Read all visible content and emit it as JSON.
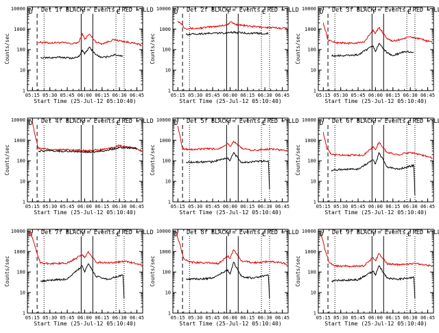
{
  "figure": {
    "colors": {
      "events": "#000000",
      "lld": "#e00000",
      "background": "#ffffff",
      "axes": "#000000"
    }
  },
  "chart_data": [
    {
      "type": "line",
      "title": "Det 1f BLACK = Events, RED = LLD",
      "xlabel": "Start Time (25-Jul-12 05:10:40)",
      "ylabel": "Counts/sec",
      "x_ticks": [
        "05:15",
        "05:30",
        "05:45",
        "06:00",
        "06:15",
        "06:30",
        "06:45"
      ],
      "y_ticks": [
        "1",
        "10",
        "100",
        "1000",
        "10000"
      ],
      "y_scale": "log",
      "ylim": [
        1,
        12000
      ],
      "vlines": [
        {
          "t": "05:19",
          "style": "dashed"
        },
        {
          "t": "05:25",
          "style": "dotted"
        },
        {
          "t": "05:57",
          "style": "solid"
        },
        {
          "t": "06:07",
          "style": "solid"
        },
        {
          "t": "06:27",
          "style": "dotted"
        },
        {
          "t": "06:34",
          "style": "dotted"
        }
      ],
      "flags": [
        "D",
        "F",
        "E"
      ],
      "series": [
        {
          "name": "LLD",
          "color": "#e00000",
          "t": [
            "05:20",
            "05:30",
            "05:40",
            "05:50",
            "05:55",
            "05:58",
            "06:00",
            "06:04",
            "06:10",
            "06:15",
            "06:25",
            "06:35",
            "06:45",
            "06:49"
          ],
          "values": [
            230,
            210,
            220,
            190,
            230,
            600,
            320,
            560,
            230,
            190,
            300,
            240,
            190,
            160
          ]
        },
        {
          "name": "Events",
          "color": "#000000",
          "t": [
            "05:22",
            "05:30",
            "05:40",
            "05:50",
            "05:55",
            "05:58",
            "06:00",
            "06:04",
            "06:10",
            "06:15",
            "06:20",
            "06:25",
            "06:33"
          ],
          "values": [
            40,
            40,
            42,
            38,
            45,
            95,
            60,
            130,
            55,
            40,
            45,
            55,
            50
          ]
        }
      ]
    },
    {
      "type": "line",
      "title": "Det 2f BLACK = Events, RED = LLD",
      "xlabel": "Start Time (25-Jul-12 05:10:40)",
      "ylabel": "Counts/sec",
      "x_ticks": [
        "05:15",
        "05:30",
        "05:45",
        "06:00",
        "06:15",
        "06:30",
        "06:45"
      ],
      "y_ticks": [
        "1",
        "10",
        "100",
        "1000",
        "10000"
      ],
      "y_scale": "log",
      "ylim": [
        1,
        12000
      ],
      "vlines": [
        {
          "t": "05:19",
          "style": "dashed"
        },
        {
          "t": "05:25",
          "style": "dotted"
        },
        {
          "t": "05:57",
          "style": "solid"
        },
        {
          "t": "06:07",
          "style": "solid"
        },
        {
          "t": "06:27",
          "style": "dotted"
        },
        {
          "t": "06:34",
          "style": "dotted"
        }
      ],
      "flags": [
        "D",
        "F",
        "E"
      ],
      "series": [
        {
          "name": "LLD",
          "color": "#e00000",
          "t": [
            "05:15",
            "05:18",
            "05:21",
            "05:30",
            "05:45",
            "05:58",
            "06:00",
            "06:05",
            "06:15",
            "06:30",
            "06:45",
            "06:49"
          ],
          "values": [
            2500,
            1800,
            1100,
            1050,
            1300,
            1600,
            2200,
            1700,
            1400,
            1200,
            1100,
            1100
          ]
        },
        {
          "name": "Events",
          "color": "#000000",
          "t": [
            "05:22",
            "05:30",
            "05:45",
            "05:58",
            "06:00",
            "06:10",
            "06:20",
            "06:33"
          ],
          "values": [
            550,
            580,
            620,
            650,
            700,
            650,
            620,
            600
          ]
        }
      ]
    },
    {
      "type": "line",
      "title": "Det 3f BLACK = Events, RED = LLD",
      "xlabel": "Start Time (25-Jul-12 05:10:40)",
      "ylabel": "Counts/sec",
      "x_ticks": [
        "05:15",
        "05:30",
        "05:45",
        "06:00",
        "06:15",
        "06:30",
        "06:45"
      ],
      "y_ticks": [
        "1",
        "10",
        "100",
        "1000",
        "10000"
      ],
      "y_scale": "log",
      "ylim": [
        1,
        12000
      ],
      "vlines": [
        {
          "t": "05:19",
          "style": "dashed"
        },
        {
          "t": "05:25",
          "style": "dotted"
        },
        {
          "t": "05:57",
          "style": "solid"
        },
        {
          "t": "06:07",
          "style": "solid"
        },
        {
          "t": "06:27",
          "style": "dotted"
        },
        {
          "t": "06:34",
          "style": "dotted"
        }
      ],
      "flags": [
        "D",
        "F",
        "E"
      ],
      "series": [
        {
          "name": "LLD",
          "color": "#e00000",
          "t": [
            "05:15",
            "05:19",
            "05:25",
            "05:40",
            "05:50",
            "05:58",
            "06:00",
            "06:03",
            "06:10",
            "06:15",
            "06:30",
            "06:45",
            "06:49"
          ],
          "values": [
            2000,
            300,
            220,
            200,
            230,
            900,
            600,
            1200,
            350,
            250,
            420,
            260,
            230
          ]
        },
        {
          "name": "Events",
          "color": "#000000",
          "t": [
            "05:22",
            "05:30",
            "05:45",
            "05:58",
            "06:00",
            "06:03",
            "06:10",
            "06:15",
            "06:25",
            "06:33"
          ],
          "values": [
            50,
            50,
            55,
            150,
            80,
            200,
            70,
            50,
            80,
            75
          ]
        }
      ]
    },
    {
      "type": "line",
      "title": "Det 4f BLACK = Events, RED = LLD",
      "xlabel": "Start Time (25-Jul-12 05:10:40)",
      "ylabel": "Counts/sec",
      "x_ticks": [
        "05:15",
        "05:30",
        "05:45",
        "06:00",
        "06:15",
        "06:30",
        "06:45"
      ],
      "y_ticks": [
        "1",
        "10",
        "100",
        "1000",
        "10000"
      ],
      "y_scale": "log",
      "ylim": [
        1,
        12000
      ],
      "vlines": [
        {
          "t": "05:19",
          "style": "dashed"
        },
        {
          "t": "05:25",
          "style": "dotted"
        },
        {
          "t": "05:57",
          "style": "solid"
        },
        {
          "t": "06:07",
          "style": "solid"
        },
        {
          "t": "06:27",
          "style": "dotted"
        },
        {
          "t": "06:34",
          "style": "dotted"
        }
      ],
      "flags": [
        "D",
        "F",
        "E"
      ],
      "series": [
        {
          "name": "LLD",
          "color": "#e00000",
          "t": [
            "05:15",
            "05:17",
            "05:20",
            "05:30",
            "05:45",
            "06:00",
            "06:10",
            "06:20",
            "06:30",
            "06:45",
            "06:49"
          ],
          "values": [
            8000,
            2000,
            400,
            360,
            340,
            320,
            330,
            380,
            550,
            380,
            300
          ]
        },
        {
          "name": "Events",
          "color": "#000000",
          "t": [
            "05:20",
            "05:30",
            "05:45",
            "06:00",
            "06:10",
            "06:20",
            "06:30",
            "06:40",
            "06:45"
          ],
          "values": [
            300,
            300,
            290,
            270,
            280,
            330,
            450,
            420,
            400
          ]
        }
      ]
    },
    {
      "type": "line",
      "title": "Det 5f BLACK = Events, RED = LLD",
      "xlabel": "Start Time (25-Jul-12 05:10:40)",
      "ylabel": "Counts/sec",
      "x_ticks": [
        "05:15",
        "05:30",
        "05:45",
        "06:00",
        "06:15",
        "06:30",
        "06:45"
      ],
      "y_ticks": [
        "1",
        "10",
        "100",
        "1000",
        "10000"
      ],
      "y_scale": "log",
      "ylim": [
        1,
        12000
      ],
      "vlines": [
        {
          "t": "05:19",
          "style": "dashed"
        },
        {
          "t": "05:25",
          "style": "dotted"
        },
        {
          "t": "05:57",
          "style": "solid"
        },
        {
          "t": "06:07",
          "style": "solid"
        },
        {
          "t": "06:27",
          "style": "dotted"
        },
        {
          "t": "06:34",
          "style": "dotted"
        }
      ],
      "flags": [
        "D",
        "F",
        "E"
      ],
      "series": [
        {
          "name": "LLD",
          "color": "#e00000",
          "t": [
            "05:15",
            "05:19",
            "05:25",
            "05:40",
            "05:50",
            "05:58",
            "06:00",
            "06:03",
            "06:10",
            "06:20",
            "06:35",
            "06:45",
            "06:49"
          ],
          "values": [
            5000,
            400,
            350,
            380,
            380,
            700,
            500,
            900,
            400,
            320,
            380,
            330,
            320
          ]
        },
        {
          "name": "Events",
          "color": "#000000",
          "t": [
            "05:22",
            "05:30",
            "05:45",
            "05:58",
            "06:00",
            "06:03",
            "06:10",
            "06:20",
            "06:33",
            "06:34"
          ],
          "values": [
            85,
            85,
            90,
            140,
            100,
            250,
            80,
            90,
            100,
            4
          ]
        }
      ]
    },
    {
      "type": "line",
      "title": "Det 6f BLACK = Events, RED = LLD",
      "xlabel": "Start Time (25-Jul-12 05:10:40)",
      "ylabel": "Counts/sec",
      "x_ticks": [
        "05:15",
        "05:30",
        "05:45",
        "06:00",
        "06:15",
        "06:30",
        "06:45"
      ],
      "y_ticks": [
        "1",
        "10",
        "100",
        "1000",
        "10000"
      ],
      "y_scale": "log",
      "ylim": [
        1,
        12000
      ],
      "vlines": [
        {
          "t": "05:19",
          "style": "dashed"
        },
        {
          "t": "05:25",
          "style": "dotted"
        },
        {
          "t": "05:57",
          "style": "solid"
        },
        {
          "t": "06:07",
          "style": "solid"
        },
        {
          "t": "06:27",
          "style": "dotted"
        },
        {
          "t": "06:34",
          "style": "dotted"
        }
      ],
      "flags": [
        "D",
        "F",
        "E"
      ],
      "series": [
        {
          "name": "LLD",
          "color": "#e00000",
          "t": [
            "05:15",
            "05:18",
            "05:22",
            "05:35",
            "05:50",
            "05:58",
            "06:00",
            "06:03",
            "06:10",
            "06:20",
            "06:30",
            "06:45",
            "06:49"
          ],
          "values": [
            2500,
            400,
            200,
            190,
            190,
            500,
            350,
            800,
            250,
            200,
            260,
            160,
            140
          ]
        },
        {
          "name": "Events",
          "color": "#000000",
          "t": [
            "05:22",
            "05:30",
            "05:45",
            "05:58",
            "06:00",
            "06:03",
            "06:10",
            "06:20",
            "06:33",
            "06:34"
          ],
          "values": [
            35,
            38,
            40,
            110,
            70,
            250,
            50,
            40,
            60,
            2
          ]
        }
      ]
    },
    {
      "type": "line",
      "title": "Det 7f BLACK = Events, RED = LLD",
      "xlabel": "Start Time (25-Jul-12 05:10:40)",
      "ylabel": "Counts/sec",
      "x_ticks": [
        "05:15",
        "05:30",
        "05:45",
        "06:00",
        "06:15",
        "06:30",
        "06:45"
      ],
      "y_ticks": [
        "1",
        "10",
        "100",
        "1000",
        "10000"
      ],
      "y_scale": "log",
      "ylim": [
        1,
        12000
      ],
      "vlines": [
        {
          "t": "05:19",
          "style": "dashed"
        },
        {
          "t": "05:25",
          "style": "dotted"
        },
        {
          "t": "05:57",
          "style": "solid"
        },
        {
          "t": "06:07",
          "style": "solid"
        },
        {
          "t": "06:27",
          "style": "dotted"
        },
        {
          "t": "06:34",
          "style": "dotted"
        }
      ],
      "flags": [
        "D",
        "F",
        "E"
      ],
      "series": [
        {
          "name": "LLD",
          "color": "#e00000",
          "t": [
            "05:13",
            "05:16",
            "05:19",
            "05:22",
            "05:30",
            "05:45",
            "05:58",
            "06:00",
            "06:03",
            "06:10",
            "06:20",
            "06:35",
            "06:49"
          ],
          "values": [
            9000,
            3000,
            800,
            270,
            260,
            270,
            700,
            500,
            1000,
            300,
            280,
            330,
            230
          ]
        },
        {
          "name": "Events",
          "color": "#000000",
          "t": [
            "05:22",
            "05:30",
            "05:45",
            "05:58",
            "06:00",
            "06:03",
            "06:10",
            "06:20",
            "06:33",
            "06:34"
          ],
          "values": [
            35,
            40,
            45,
            200,
            100,
            250,
            60,
            45,
            70,
            5
          ]
        }
      ]
    },
    {
      "type": "line",
      "title": "Det 8f BLACK = Events, RED = LLD",
      "xlabel": "Start Time (25-Jul-12 05:10:40)",
      "ylabel": "Counts/sec",
      "x_ticks": [
        "05:15",
        "05:30",
        "05:45",
        "06:00",
        "06:15",
        "06:30",
        "06:45"
      ],
      "y_ticks": [
        "1",
        "10",
        "100",
        "1000",
        "10000"
      ],
      "y_scale": "log",
      "ylim": [
        1,
        12000
      ],
      "vlines": [
        {
          "t": "05:19",
          "style": "dashed"
        },
        {
          "t": "05:25",
          "style": "dotted"
        },
        {
          "t": "05:57",
          "style": "solid"
        },
        {
          "t": "06:07",
          "style": "solid"
        },
        {
          "t": "06:27",
          "style": "dotted"
        },
        {
          "t": "06:34",
          "style": "dotted"
        }
      ],
      "flags": [
        "D",
        "F",
        "E"
      ],
      "series": [
        {
          "name": "LLD",
          "color": "#e00000",
          "t": [
            "05:13",
            "05:16",
            "05:20",
            "05:25",
            "05:40",
            "05:50",
            "05:58",
            "06:00",
            "06:03",
            "06:10",
            "06:20",
            "06:35",
            "06:49"
          ],
          "values": [
            10000,
            3000,
            450,
            300,
            280,
            260,
            600,
            450,
            1200,
            350,
            280,
            330,
            250
          ]
        },
        {
          "name": "Events",
          "color": "#000000",
          "t": [
            "05:22",
            "05:30",
            "05:45",
            "05:58",
            "06:00",
            "06:03",
            "06:10",
            "06:20",
            "06:33",
            "06:34"
          ],
          "values": [
            45,
            45,
            50,
            130,
            80,
            300,
            60,
            50,
            70,
            5
          ]
        }
      ]
    },
    {
      "type": "line",
      "title": "Det 9f BLACK = Events, RED = LLD",
      "xlabel": "Start Time (25-Jul-12 05:10:40)",
      "ylabel": "Counts/sec",
      "x_ticks": [
        "05:15",
        "05:30",
        "05:45",
        "06:00",
        "06:15",
        "06:30",
        "06:45"
      ],
      "y_ticks": [
        "1",
        "10",
        "100",
        "1000",
        "10000"
      ],
      "y_scale": "log",
      "ylim": [
        1,
        12000
      ],
      "vlines": [
        {
          "t": "05:19",
          "style": "dashed"
        },
        {
          "t": "05:25",
          "style": "dotted"
        },
        {
          "t": "05:57",
          "style": "solid"
        },
        {
          "t": "06:07",
          "style": "solid"
        },
        {
          "t": "06:27",
          "style": "dotted"
        },
        {
          "t": "06:34",
          "style": "dotted"
        }
      ],
      "flags": [
        "D",
        "F",
        "E"
      ],
      "series": [
        {
          "name": "LLD",
          "color": "#e00000",
          "t": [
            "05:13",
            "05:16",
            "05:20",
            "05:25",
            "05:40",
            "05:50",
            "05:58",
            "06:00",
            "06:03",
            "06:10",
            "06:20",
            "06:35",
            "06:49"
          ],
          "values": [
            8000,
            1500,
            300,
            200,
            190,
            200,
            500,
            350,
            800,
            250,
            230,
            260,
            200
          ]
        },
        {
          "name": "Events",
          "color": "#000000",
          "t": [
            "05:22",
            "05:30",
            "05:45",
            "05:58",
            "06:00",
            "06:03",
            "06:10",
            "06:20",
            "06:33",
            "06:34"
          ],
          "values": [
            35,
            40,
            42,
            110,
            70,
            200,
            50,
            45,
            55,
            5
          ]
        }
      ]
    }
  ]
}
